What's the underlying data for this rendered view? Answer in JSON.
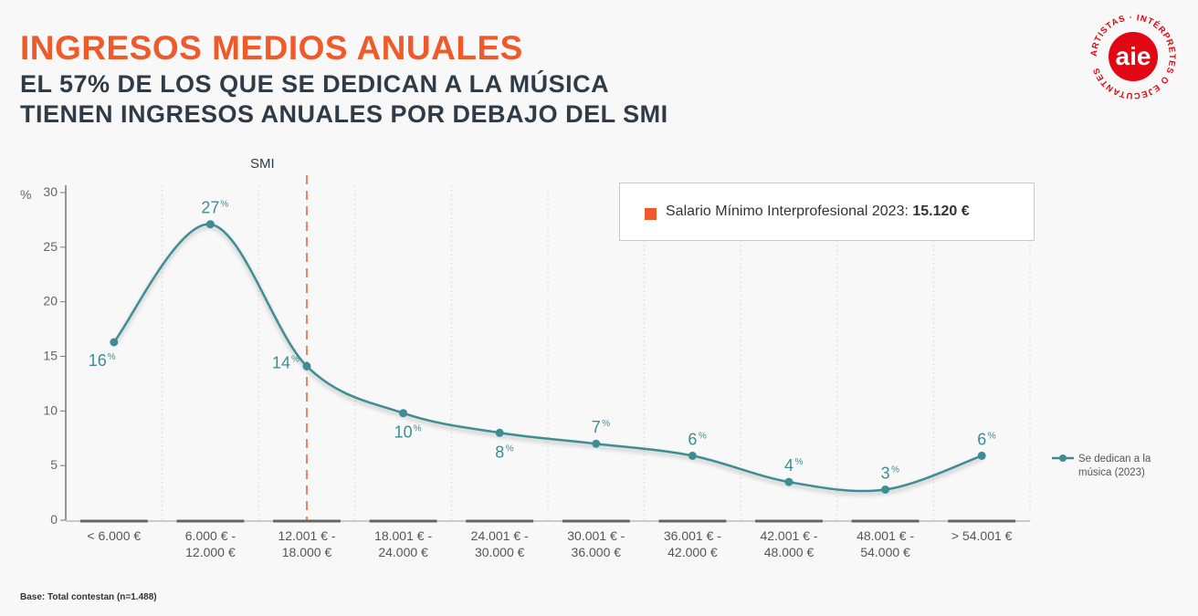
{
  "header": {
    "title": "INGRESOS MEDIOS ANUALES",
    "subtitle_line1": "EL 57% DE LOS QUE SE DEDICAN A LA MÚSICA",
    "subtitle_line2": "TIENEN INGRESOS ANUALES POR DEBAJO DEL SMI"
  },
  "logo": {
    "text": "aie",
    "ring_text": "ARTISTAS · INTÉRPRETES O EJECUTANTES",
    "color": "#e30613"
  },
  "footer": {
    "base_note": "Base: Total contestan (n=1.488)"
  },
  "info_box": {
    "label": "Salario Mínimo Interprofesional 2023:",
    "value": "15.120 €",
    "marker_color": "#ef5a2a"
  },
  "chart_data": {
    "type": "line",
    "categories": [
      [
        "< 6.000 €"
      ],
      [
        "6.000 € -",
        "12.000 €"
      ],
      [
        "12.001 € -",
        "18.000 €"
      ],
      [
        "18.001 € -",
        "24.000 €"
      ],
      [
        "24.001 € -",
        "30.000 €"
      ],
      [
        "30.001 € -",
        "36.000 €"
      ],
      [
        "36.001 € -",
        "42.000 €"
      ],
      [
        "42.001 € -",
        "48.000 €"
      ],
      [
        "48.001 € -",
        "54.000 €"
      ],
      [
        "> 54.001 €"
      ]
    ],
    "series": [
      {
        "name": "Se dedican a la música (2023)",
        "name_lines": [
          "Se dedican a la",
          "música (2023)"
        ],
        "values": [
          16.3,
          27.1,
          14.1,
          9.8,
          8.0,
          7.0,
          5.9,
          3.5,
          2.8,
          5.9
        ],
        "labels": [
          "16",
          "27",
          "14",
          "10",
          "8",
          "7",
          "6",
          "4",
          "3",
          "6"
        ],
        "color": "#3d8d92"
      }
    ],
    "ylabel": "%",
    "yticks": [
      0,
      5,
      10,
      15,
      20,
      25,
      30
    ],
    "ylim": [
      0,
      30
    ],
    "percent_sign": "%",
    "reference_line": {
      "label": "SMI",
      "position": "category 3 (12.001 € - 18.000 €)",
      "color": "#ef5a2a"
    },
    "grid": "vertical dotted",
    "legend": "right"
  }
}
